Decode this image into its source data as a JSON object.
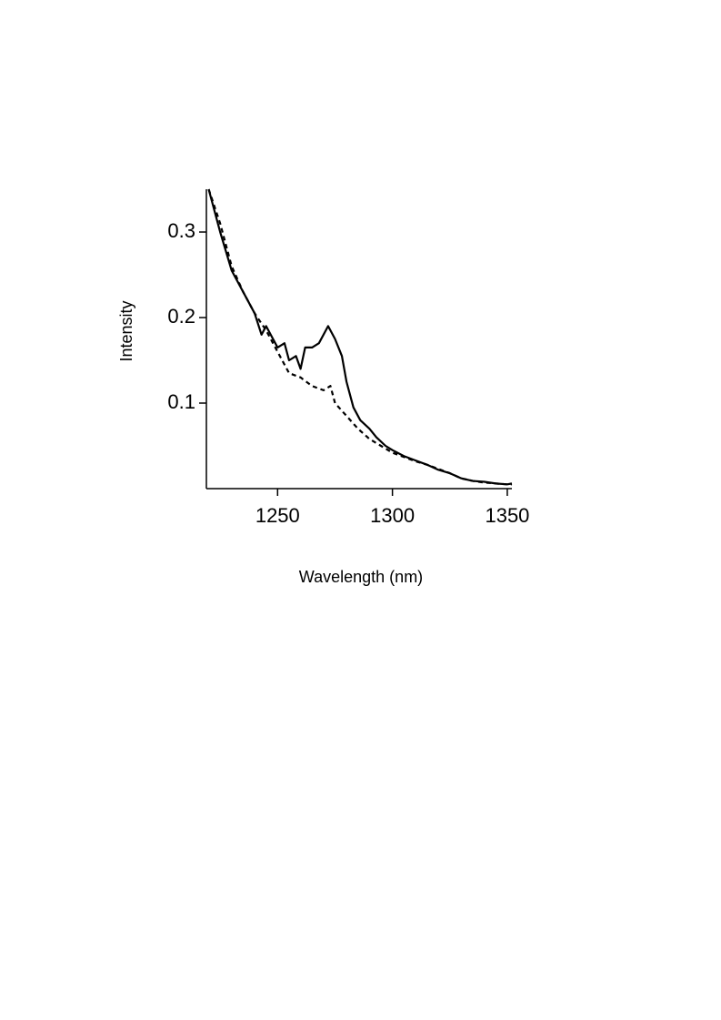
{
  "chart_data": {
    "type": "line",
    "xlabel": "Wavelength (nm)",
    "ylabel": "Intensity",
    "xlim": [
      1219,
      1352
    ],
    "ylim": [
      0,
      0.35
    ],
    "xticks": [
      1250,
      1300,
      1350
    ],
    "yticks": [
      0.1,
      0.2,
      0.3
    ],
    "series": [
      {
        "color": "#000000",
        "linestyle": "solid",
        "x": [
          1220,
          1225,
          1230,
          1235,
          1240,
          1243,
          1245,
          1248,
          1250,
          1253,
          1255,
          1258,
          1260,
          1262,
          1265,
          1268,
          1272,
          1275,
          1278,
          1280,
          1283,
          1286,
          1290,
          1293,
          1297,
          1300,
          1305,
          1310,
          1315,
          1320,
          1325,
          1330,
          1335,
          1340,
          1345,
          1350,
          1352
        ],
        "values": [
          0.35,
          0.3,
          0.255,
          0.23,
          0.205,
          0.18,
          0.19,
          0.175,
          0.165,
          0.17,
          0.15,
          0.155,
          0.14,
          0.165,
          0.165,
          0.17,
          0.19,
          0.175,
          0.155,
          0.125,
          0.095,
          0.08,
          0.07,
          0.06,
          0.05,
          0.045,
          0.038,
          0.033,
          0.028,
          0.022,
          0.018,
          0.012,
          0.009,
          0.008,
          0.006,
          0.005,
          0.006
        ]
      },
      {
        "color": "#000000",
        "linestyle": "dashed",
        "x": [
          1220,
          1225,
          1230,
          1235,
          1240,
          1245,
          1250,
          1255,
          1260,
          1265,
          1270,
          1273,
          1275,
          1280,
          1285,
          1290,
          1295,
          1300,
          1305,
          1310,
          1315,
          1320,
          1325,
          1330,
          1335,
          1340,
          1345,
          1350,
          1352
        ],
        "values": [
          0.35,
          0.31,
          0.26,
          0.23,
          0.205,
          0.185,
          0.16,
          0.135,
          0.13,
          0.12,
          0.115,
          0.12,
          0.1,
          0.085,
          0.07,
          0.058,
          0.05,
          0.042,
          0.037,
          0.032,
          0.028,
          0.023,
          0.018,
          0.012,
          0.009,
          0.007,
          0.006,
          0.005,
          0.005
        ]
      }
    ]
  }
}
